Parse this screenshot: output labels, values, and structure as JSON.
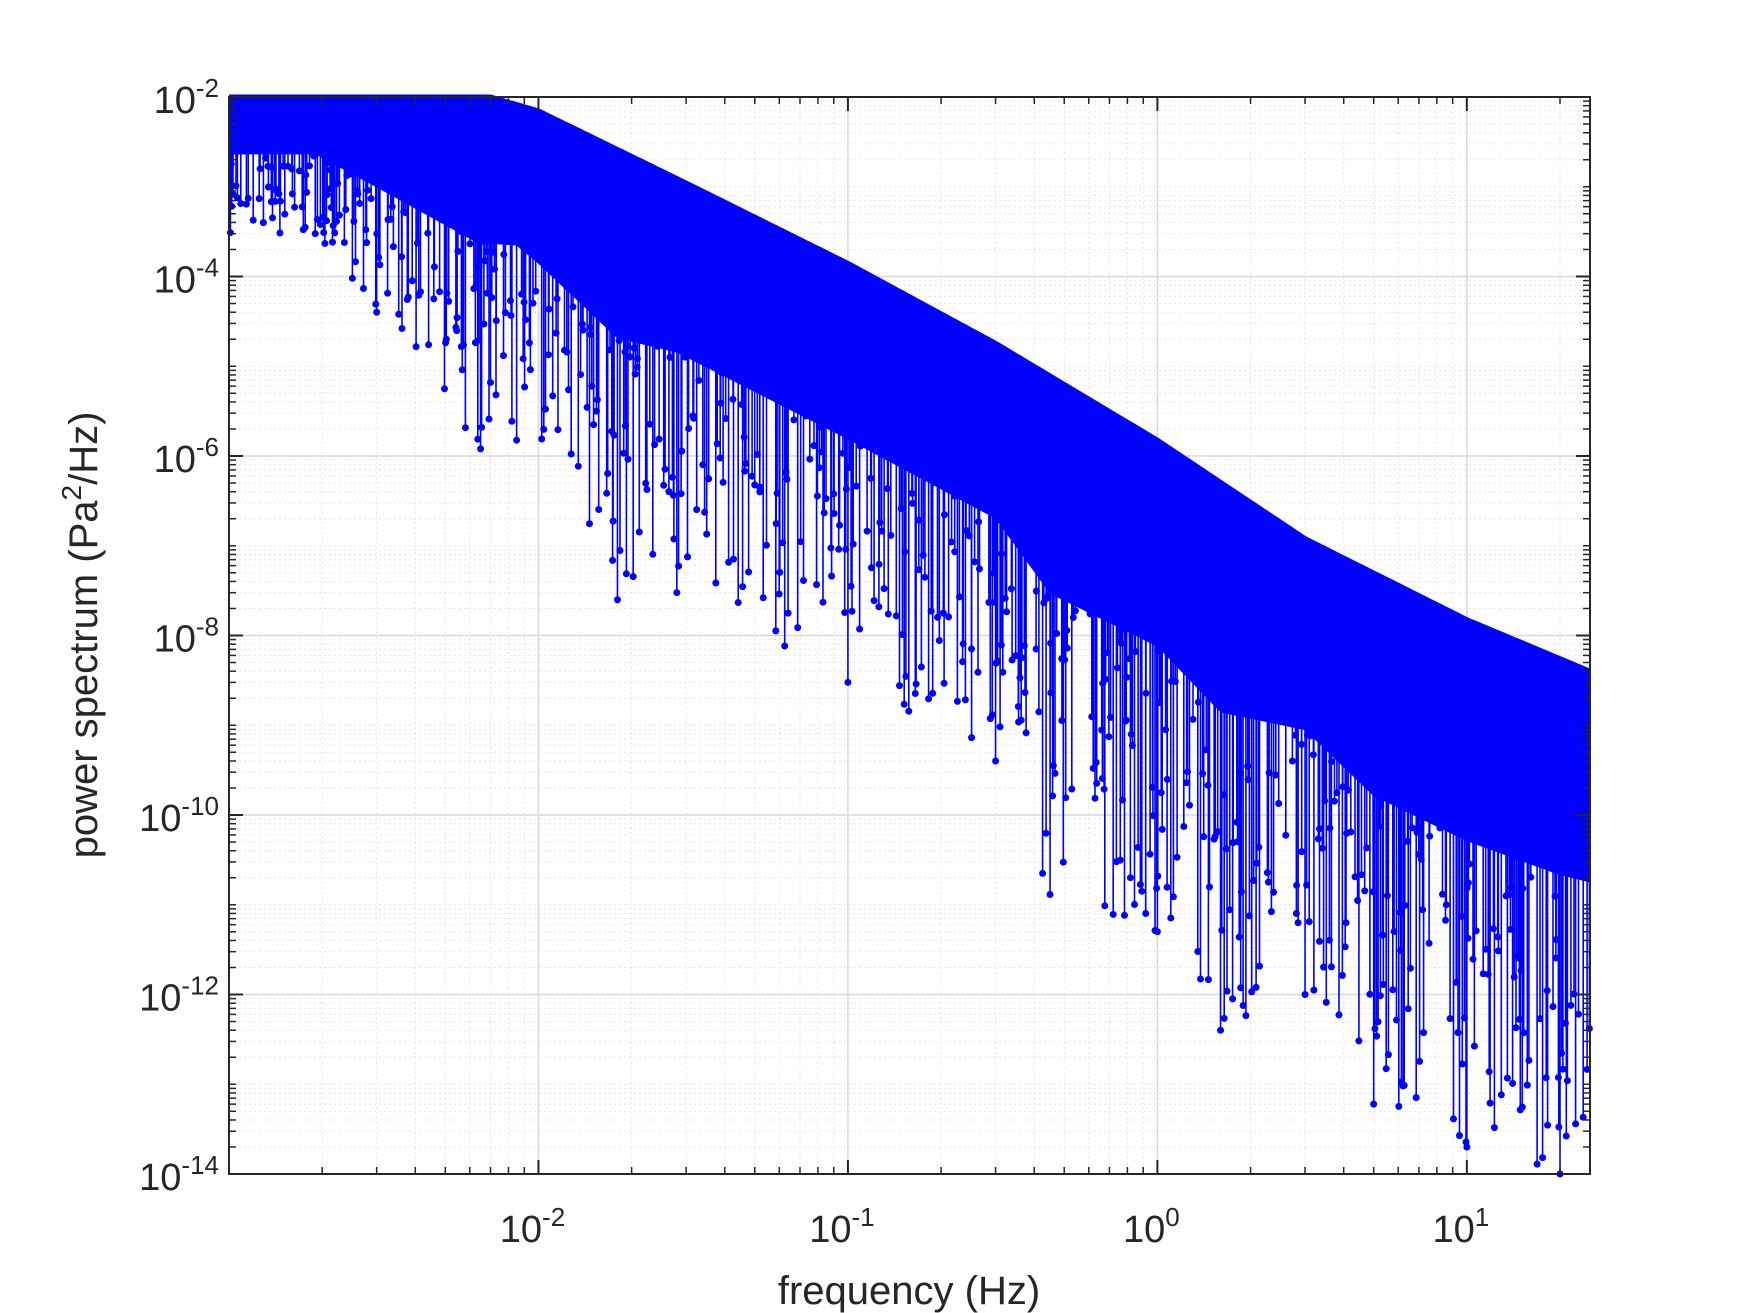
{
  "chart_data": {
    "type": "line",
    "title": "",
    "xlabel": "frequency (Hz)",
    "ylabel": "power spectrum (Pa2/Hz)",
    "ylabel_parts": {
      "pre": "power spectrum (Pa",
      "sup": "2",
      "post": "/Hz)"
    },
    "x_scale": "log",
    "y_scale": "log",
    "xlim": [
      0.001,
      25
    ],
    "ylim": [
      1e-14,
      0.01
    ],
    "grid": true,
    "minor_grid": true,
    "legend": "none",
    "series_color": "#0000ff",
    "marker": "dot",
    "x_ticks": [
      {
        "value": 0.01,
        "base": "10",
        "exp": "-2"
      },
      {
        "value": 0.1,
        "base": "10",
        "exp": "-1"
      },
      {
        "value": 1,
        "base": "10",
        "exp": "0"
      },
      {
        "value": 10,
        "base": "10",
        "exp": "1"
      }
    ],
    "y_ticks": [
      {
        "value": 0.01,
        "base": "10",
        "exp": "-2"
      },
      {
        "value": 0.0001,
        "base": "10",
        "exp": "-4"
      },
      {
        "value": 1e-06,
        "base": "10",
        "exp": "-6"
      },
      {
        "value": 1e-08,
        "base": "10",
        "exp": "-8"
      },
      {
        "value": 1e-10,
        "base": "10",
        "exp": "-10"
      },
      {
        "value": 1e-12,
        "base": "10",
        "exp": "-12"
      },
      {
        "value": 1e-14,
        "base": "10",
        "exp": "-14"
      }
    ],
    "envelope": [
      {
        "f": 0.001,
        "p": 0.01
      },
      {
        "f": 0.007,
        "p": 0.01
      },
      {
        "f": 0.01,
        "p": 0.007
      },
      {
        "f": 0.03,
        "p": 0.0011
      },
      {
        "f": 0.1,
        "p": 0.00014
      },
      {
        "f": 0.3,
        "p": 1.8e-05
      },
      {
        "f": 1,
        "p": 1.5e-06
      },
      {
        "f": 3,
        "p": 1.2e-07
      },
      {
        "f": 10,
        "p": 1.5e-08
      },
      {
        "f": 25,
        "p": 4e-09
      }
    ],
    "lower_dips": [
      {
        "f": 0.001,
        "p": 0.0003
      },
      {
        "f": 0.0019,
        "p": 0.0003
      },
      {
        "f": 0.003,
        "p": 4e-05
      },
      {
        "f": 0.0065,
        "p": 1.2e-06
      },
      {
        "f": 0.0085,
        "p": 1.5e-06
      },
      {
        "f": 0.018,
        "p": 2.5e-08
      },
      {
        "f": 0.028,
        "p": 3e-08
      },
      {
        "f": 0.1,
        "p": 3e-09
      },
      {
        "f": 0.3,
        "p": 4e-10
      },
      {
        "f": 0.45,
        "p": 1.3e-11
      },
      {
        "f": 1,
        "p": 5e-12
      },
      {
        "f": 1.6,
        "p": 4e-13
      },
      {
        "f": 3,
        "p": 1e-12
      },
      {
        "f": 5,
        "p": 6e-14
      },
      {
        "f": 10,
        "p": 2e-14
      },
      {
        "f": 20,
        "p": 1e-14
      },
      {
        "f": 25,
        "p": 1e-14
      }
    ]
  }
}
